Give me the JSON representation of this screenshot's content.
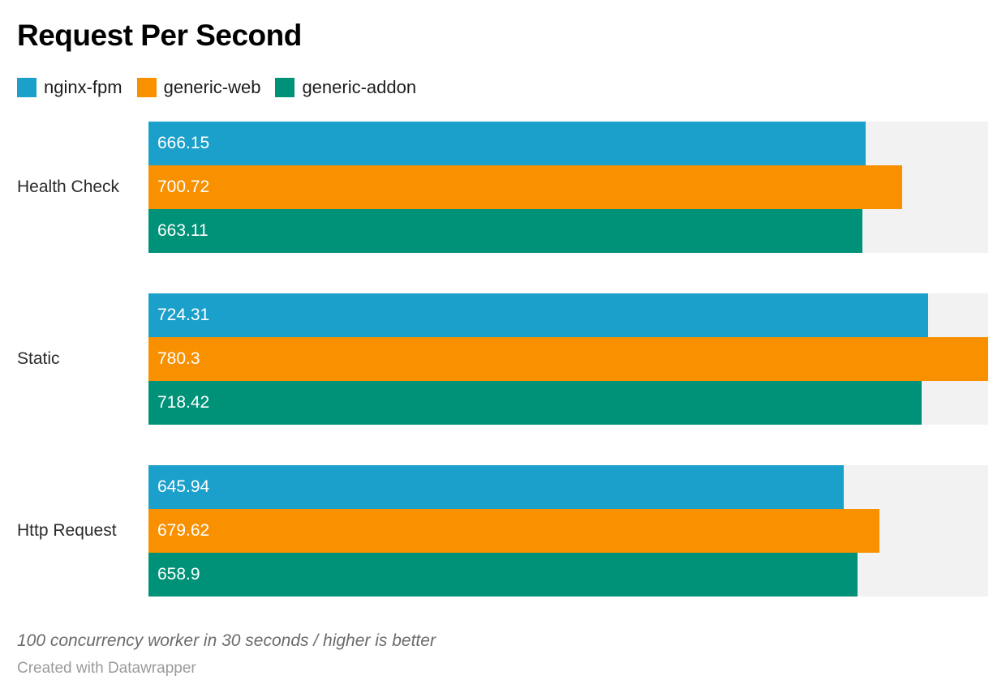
{
  "title": "Request Per Second",
  "legend": [
    {
      "label": "nginx-fpm",
      "color": "#1ba0cb"
    },
    {
      "label": "generic-web",
      "color": "#f89000"
    },
    {
      "label": "generic-addon",
      "color": "#009278"
    }
  ],
  "chart_data": {
    "type": "bar",
    "orientation": "horizontal",
    "title": "Request Per Second",
    "categories": [
      "Health Check",
      "Static",
      "Http Request"
    ],
    "series": [
      {
        "name": "nginx-fpm",
        "color": "#1ba0cb",
        "values": [
          666.15,
          724.31,
          645.94
        ]
      },
      {
        "name": "generic-web",
        "color": "#f89000",
        "values": [
          700.72,
          780.3,
          679.62
        ]
      },
      {
        "name": "generic-addon",
        "color": "#009278",
        "values": [
          663.11,
          718.42,
          658.9
        ]
      }
    ],
    "xlim": [
      0,
      780.3
    ],
    "grid": false,
    "legend_position": "top",
    "value_labels": "inside-start",
    "track_color": "#f2f2f2",
    "label_color": "#ffffff"
  },
  "footer": {
    "note": "100 concurrency worker in 30 seconds / higher is better",
    "attribution": "Created with Datawrapper"
  }
}
